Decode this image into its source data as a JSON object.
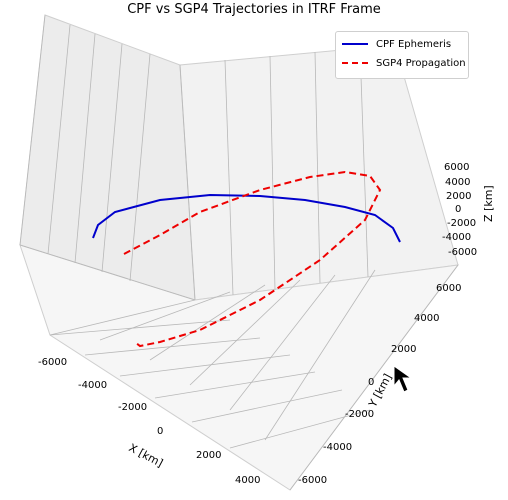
{
  "chart_data": {
    "type": "line",
    "title": "CPF vs SGP4 Trajectories in ITRF Frame",
    "xlabel": "X [km]",
    "ylabel": "Y [km]",
    "zlabel": "Z [km]",
    "x_ticks": [
      -6000,
      -4000,
      -2000,
      0,
      2000,
      4000
    ],
    "y_ticks": [
      -6000,
      -4000,
      -2000,
      0,
      2000,
      4000,
      6000
    ],
    "z_ticks": [
      -6000,
      -4000,
      -2000,
      0,
      2000,
      4000,
      6000
    ],
    "xlim": [
      -7000,
      5000
    ],
    "ylim": [
      -7000,
      7000
    ],
    "zlim": [
      -7000,
      7000
    ],
    "grid": true,
    "legend_placement": "upper-right",
    "series": [
      {
        "name": "CPF Ephemeris",
        "color": "#0000cc",
        "style": "solid",
        "points": [
          [
            -6500,
            -400,
            500
          ],
          [
            -6000,
            -1800,
            700
          ],
          [
            -5000,
            -3000,
            900
          ],
          [
            -3500,
            -4200,
            1000
          ],
          [
            -1500,
            -5000,
            1050
          ],
          [
            500,
            -5300,
            1050
          ],
          [
            2200,
            -5000,
            1000
          ],
          [
            3500,
            -4300,
            900
          ],
          [
            4300,
            -3400,
            800
          ],
          [
            4500,
            -2500,
            700
          ],
          [
            4200,
            -1800,
            600
          ]
        ]
      },
      {
        "name": "SGP4 Propagation",
        "color": "#ee0000",
        "style": "dashed",
        "points": [
          [
            -5600,
            -1500,
            -3500
          ],
          [
            -3200,
            -3500,
            -1500
          ],
          [
            -500,
            -5000,
            1500
          ],
          [
            1500,
            -5600,
            4000
          ],
          [
            2500,
            -5000,
            6000
          ],
          [
            3200,
            -4000,
            5500
          ],
          [
            3000,
            -3000,
            3000
          ],
          [
            1800,
            -1500,
            -1000
          ],
          [
            0,
            500,
            -4500
          ],
          [
            -1500,
            1800,
            -6000
          ],
          [
            -2400,
            2500,
            -6500
          ],
          [
            -2800,
            2800,
            -6200
          ]
        ]
      }
    ]
  }
}
